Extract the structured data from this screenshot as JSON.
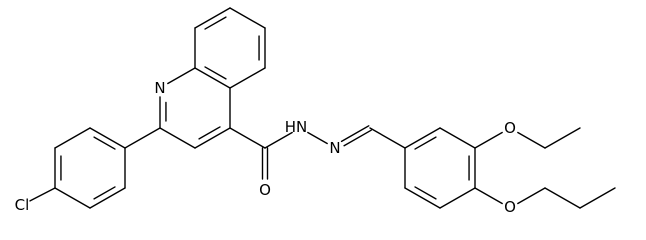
{
  "atoms": [
    {
      "label": "N"
    },
    {
      "label": "Cl"
    },
    {
      "label": "O"
    },
    {
      "label": "HN"
    },
    {
      "label": "N"
    },
    {
      "label": "O"
    },
    {
      "label": "O"
    }
  ]
}
